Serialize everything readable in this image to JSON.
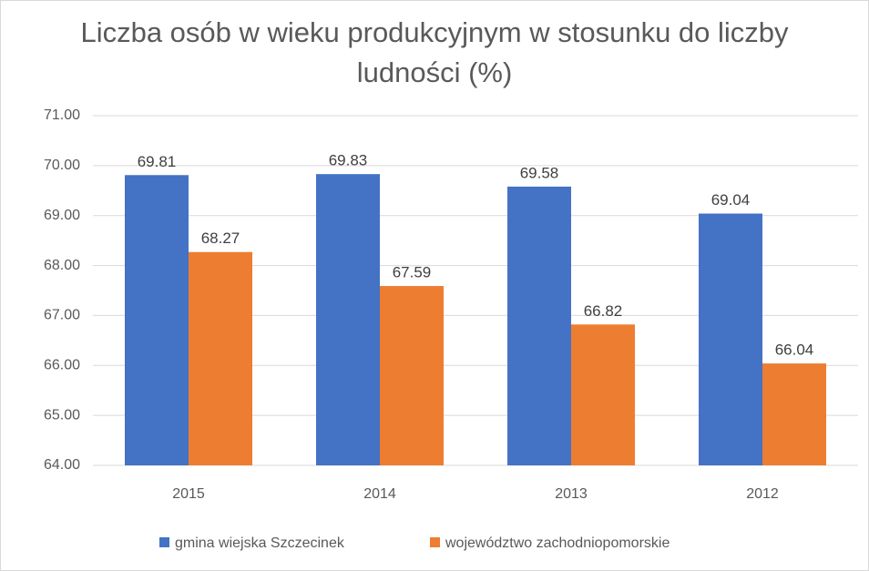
{
  "chart_data": {
    "type": "bar",
    "title": "Liczba osób w wieku produkcyjnym w stosunku do liczby ludności (%)",
    "categories": [
      "2015",
      "2014",
      "2013",
      "2012"
    ],
    "series": [
      {
        "name": "gmina wiejska Szczecinek",
        "color": "#4472c4",
        "values": [
          69.81,
          69.83,
          69.58,
          69.04
        ]
      },
      {
        "name": "województwo zachodniopomorskie",
        "color": "#ed7d31",
        "values": [
          68.27,
          67.59,
          66.82,
          66.04
        ]
      }
    ],
    "ylim": [
      64,
      71
    ],
    "yticks": [
      {
        "value": 64,
        "label": "64.00"
      },
      {
        "value": 65,
        "label": "65.00"
      },
      {
        "value": 66,
        "label": "66.00"
      },
      {
        "value": 67,
        "label": "67.00"
      },
      {
        "value": 68,
        "label": "68.00"
      },
      {
        "value": 69,
        "label": "69.00"
      },
      {
        "value": 70,
        "label": "70.00"
      },
      {
        "value": 71,
        "label": "71.00"
      }
    ],
    "grid": true,
    "legend": "bottom"
  }
}
